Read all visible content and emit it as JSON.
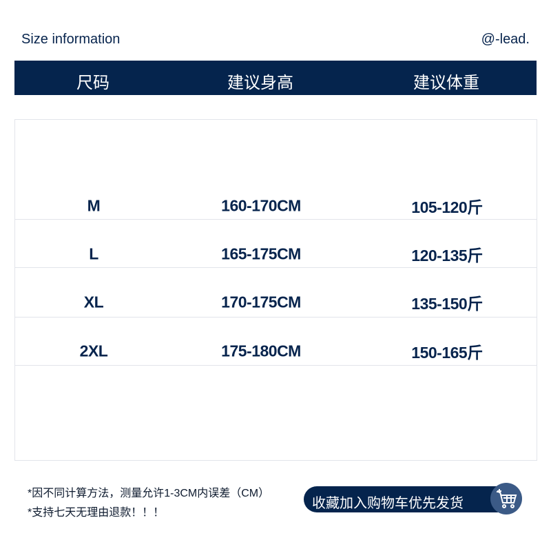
{
  "header": {
    "title": "Size information",
    "brand": "@-lead."
  },
  "columns": [
    "尺码",
    "建议身高",
    "建议体重"
  ],
  "rows": [
    {
      "size": "M",
      "height": "160-170CM",
      "weight": "105-120斤"
    },
    {
      "size": "L",
      "height": "165-175CM",
      "weight": "120-135斤"
    },
    {
      "size": "XL",
      "height": "170-175CM",
      "weight": "135-150斤"
    },
    {
      "size": "2XL",
      "height": "175-180CM",
      "weight": "150-165斤"
    }
  ],
  "notes": [
    "*因不同计算方法，测量允许1-3CM内误差（CM）",
    "*支持七天无理由退款！！！"
  ],
  "cart_button": {
    "label": "收藏加入购物车优先发货",
    "icon": "shopping-cart-icon"
  },
  "colors": {
    "primary": "#05244d",
    "icon_bg": "#3b5a86"
  }
}
